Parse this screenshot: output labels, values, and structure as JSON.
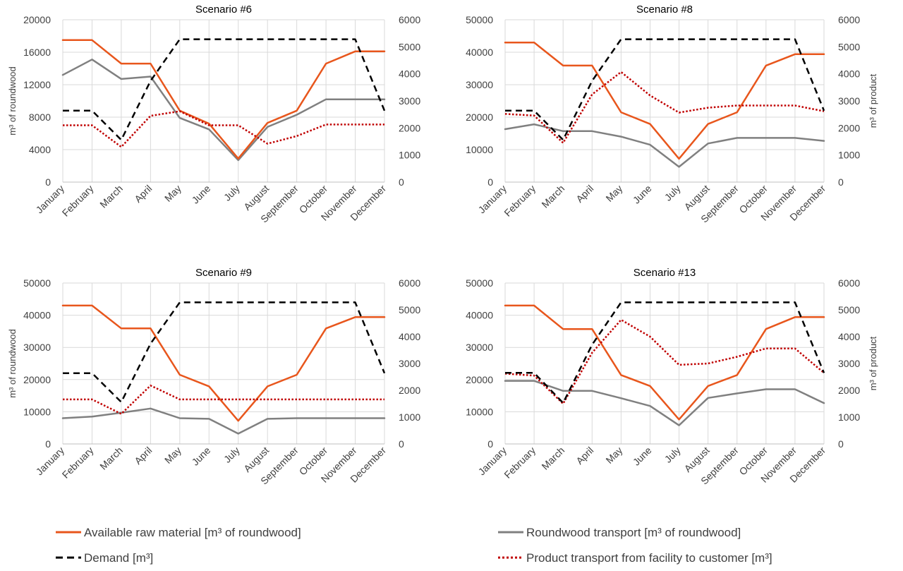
{
  "months": [
    "January",
    "February",
    "March",
    "April",
    "May",
    "June",
    "July",
    "August",
    "September",
    "October",
    "November",
    "December"
  ],
  "legend": [
    {
      "key": "raw",
      "label": "Available raw material [m³ of roundwood]",
      "color": "#E8561C",
      "dash": "solid"
    },
    {
      "key": "transport",
      "label": "Roundwood transport [m³ of roundwood]",
      "color": "#808080",
      "dash": "solid"
    },
    {
      "key": "demand",
      "label": "Demand [m³]",
      "color": "#000000",
      "dash": "dashed"
    },
    {
      "key": "product",
      "label": "Product transport from facility to customer [m³]",
      "color": "#C00000",
      "dash": "dotted"
    }
  ],
  "chart_data": [
    {
      "type": "line",
      "title": "Scenario #6",
      "ylabel": "m³ of roundwood",
      "y2label": "",
      "ylim": [
        0,
        20000
      ],
      "yticks": [
        0,
        4000,
        8000,
        12000,
        16000,
        20000
      ],
      "y2lim": [
        0,
        6000
      ],
      "y2ticks": [
        0,
        1000,
        2000,
        3000,
        4000,
        5000,
        6000
      ],
      "categories": [
        "January",
        "February",
        "March",
        "April",
        "May",
        "June",
        "July",
        "August",
        "September",
        "October",
        "November",
        "December"
      ],
      "series": [
        {
          "name": "Available raw material [m³ of roundwood]",
          "axis": "left",
          "values": [
            17500,
            17500,
            14600,
            14600,
            8800,
            7200,
            2900,
            7300,
            8800,
            14600,
            16100,
            16100
          ]
        },
        {
          "name": "Roundwood transport [m³ of roundwood]",
          "axis": "left",
          "values": [
            13200,
            15100,
            12700,
            13000,
            7900,
            6500,
            2700,
            6800,
            8300,
            10200,
            10200,
            10200
          ]
        },
        {
          "name": "Demand [m³]",
          "axis": "right",
          "values": [
            2640,
            2640,
            1560,
            3740,
            5280,
            5280,
            5280,
            5280,
            5280,
            5280,
            5280,
            2640
          ]
        },
        {
          "name": "Product transport from facility to customer [m³]",
          "axis": "right",
          "values": [
            2100,
            2100,
            1300,
            2450,
            2620,
            2100,
            2100,
            1420,
            1700,
            2130,
            2130,
            2130
          ]
        }
      ]
    },
    {
      "type": "line",
      "title": "Scenario #8",
      "ylabel": "",
      "y2label": "m³ of product",
      "ylim": [
        0,
        50000
      ],
      "yticks": [
        0,
        10000,
        20000,
        30000,
        40000,
        50000
      ],
      "y2lim": [
        0,
        6000
      ],
      "y2ticks": [
        0,
        1000,
        2000,
        3000,
        4000,
        5000,
        6000
      ],
      "categories": [
        "January",
        "February",
        "March",
        "April",
        "May",
        "June",
        "July",
        "August",
        "September",
        "October",
        "November",
        "December"
      ],
      "series": [
        {
          "name": "Available raw material [m³ of roundwood]",
          "axis": "left",
          "values": [
            43000,
            43000,
            35900,
            35900,
            21500,
            17900,
            7200,
            17900,
            21500,
            35900,
            39400,
            39400
          ]
        },
        {
          "name": "Roundwood transport [m³ of roundwood]",
          "axis": "left",
          "values": [
            16300,
            17800,
            15700,
            15700,
            14000,
            11500,
            4700,
            11900,
            13600,
            13600,
            13600,
            12700
          ]
        },
        {
          "name": "Demand [m³]",
          "axis": "right",
          "values": [
            2640,
            2640,
            1560,
            3740,
            5280,
            5280,
            5280,
            5280,
            5280,
            5280,
            5280,
            2640
          ]
        },
        {
          "name": "Product transport from facility to customer [m³]",
          "axis": "right",
          "values": [
            2520,
            2460,
            1450,
            3240,
            4070,
            3200,
            2570,
            2750,
            2830,
            2830,
            2830,
            2620
          ]
        }
      ]
    },
    {
      "type": "line",
      "title": "Scenario #9",
      "ylabel": "m³ of roundwood",
      "y2label": "",
      "ylim": [
        0,
        50000
      ],
      "yticks": [
        0,
        10000,
        20000,
        30000,
        40000,
        50000
      ],
      "y2lim": [
        0,
        6000
      ],
      "y2ticks": [
        0,
        1000,
        2000,
        3000,
        4000,
        5000,
        6000
      ],
      "categories": [
        "January",
        "February",
        "March",
        "April",
        "May",
        "June",
        "July",
        "August",
        "September",
        "October",
        "November",
        "December"
      ],
      "series": [
        {
          "name": "Available raw material [m³ of roundwood]",
          "axis": "left",
          "values": [
            43000,
            43000,
            35900,
            35900,
            21500,
            17900,
            7200,
            17900,
            21500,
            35900,
            39400,
            39400
          ]
        },
        {
          "name": "Roundwood transport [m³ of roundwood]",
          "axis": "left",
          "values": [
            8000,
            8500,
            9700,
            11000,
            8000,
            7800,
            3200,
            7800,
            8000,
            8000,
            8000,
            8000
          ]
        },
        {
          "name": "Demand [m³]",
          "axis": "right",
          "values": [
            2640,
            2640,
            1560,
            3740,
            5280,
            5280,
            5280,
            5280,
            5280,
            5280,
            5280,
            2640
          ]
        },
        {
          "name": "Product transport from facility to customer [m³]",
          "axis": "right",
          "values": [
            1660,
            1660,
            1120,
            2180,
            1660,
            1660,
            1660,
            1660,
            1660,
            1660,
            1660,
            1660
          ]
        }
      ]
    },
    {
      "type": "line",
      "title": "Scenario #13",
      "ylabel": "",
      "y2label": "m³ of product",
      "ylim": [
        0,
        50000
      ],
      "yticks": [
        0,
        10000,
        20000,
        30000,
        40000,
        50000
      ],
      "y2lim": [
        0,
        6000
      ],
      "y2ticks": [
        0,
        1000,
        2000,
        3000,
        4000,
        5000,
        6000
      ],
      "categories": [
        "January",
        "February",
        "March",
        "April",
        "May",
        "June",
        "July",
        "August",
        "September",
        "October",
        "November",
        "December"
      ],
      "series": [
        {
          "name": "Available raw material [m³ of roundwood]",
          "axis": "left",
          "values": [
            43000,
            43000,
            35700,
            35700,
            21400,
            18000,
            7600,
            18000,
            21400,
            35700,
            39400,
            39400
          ]
        },
        {
          "name": "Roundwood transport [m³ of roundwood]",
          "axis": "left",
          "values": [
            19600,
            19600,
            16500,
            16500,
            14200,
            11800,
            5800,
            14300,
            15700,
            17000,
            17000,
            12700
          ]
        },
        {
          "name": "Demand [m³]",
          "axis": "right",
          "values": [
            2650,
            2650,
            1530,
            3700,
            5280,
            5280,
            5280,
            5280,
            5280,
            5280,
            5280,
            2650
          ]
        },
        {
          "name": "Product transport from facility to customer [m³]",
          "axis": "right",
          "values": [
            2620,
            2550,
            1500,
            3400,
            4630,
            4000,
            2950,
            3000,
            3250,
            3560,
            3560,
            2650
          ]
        }
      ]
    }
  ]
}
